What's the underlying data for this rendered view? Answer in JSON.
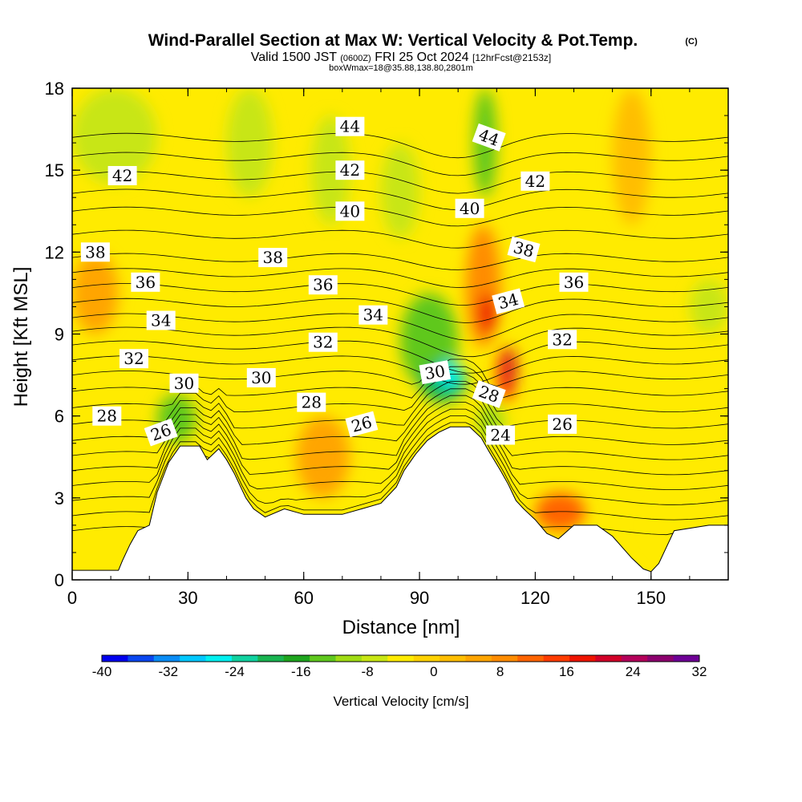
{
  "chart_data": {
    "type": "heatmap",
    "title": "Wind-Parallel Section at Max W: Vertical Velocity & Pot.Temp.",
    "title_mark": "(C)",
    "subtitle_main": "Valid 1500 JST",
    "subtitle_utc": "(0600Z)",
    "subtitle_date": "FRI 25 Oct 2024",
    "subtitle_fcst": "[12hrFcst@2153z]",
    "subtitle_box": "boxWmax=18@35.88,138.80,2801m",
    "xlabel": "Distance [nm]",
    "ylabel": "Height [Kft MSL]",
    "xlim": [
      0,
      170
    ],
    "ylim": [
      0,
      18
    ],
    "x_ticks": [
      "0",
      "30",
      "60",
      "90",
      "120",
      "150"
    ],
    "y_ticks": [
      "0",
      "3",
      "6",
      "9",
      "12",
      "15",
      "18"
    ],
    "colorbar": {
      "label": "Vertical Velocity [cm/s]",
      "tick_labels": [
        "-40",
        "-32",
        "-24",
        "-16",
        "-8",
        "0",
        "8",
        "16",
        "24",
        "32"
      ],
      "range": [
        -40,
        32
      ],
      "colors": [
        "#0000ee",
        "#0a46f0",
        "#0a8cf5",
        "#00c8ff",
        "#00f0f0",
        "#10d2a0",
        "#19b450",
        "#1ea51e",
        "#5fc81e",
        "#a0dc14",
        "#c8e614",
        "#ffeb00",
        "#ffd200",
        "#ffbe00",
        "#ffa500",
        "#ff8c00",
        "#ff6400",
        "#ff3c00",
        "#ee1400",
        "#d20028",
        "#b4005a",
        "#8c006e",
        "#6e0096"
      ]
    },
    "terrain": [
      [
        0,
        0.35
      ],
      [
        12,
        0.35
      ],
      [
        13,
        0.7
      ],
      [
        15,
        1.3
      ],
      [
        17,
        1.8
      ],
      [
        20,
        2.0
      ],
      [
        22,
        3.2
      ],
      [
        25,
        4.3
      ],
      [
        28,
        4.9
      ],
      [
        33,
        4.9
      ],
      [
        35,
        4.4
      ],
      [
        38,
        4.8
      ],
      [
        40,
        4.4
      ],
      [
        42,
        3.9
      ],
      [
        45,
        3.0
      ],
      [
        47,
        2.6
      ],
      [
        50,
        2.3
      ],
      [
        55,
        2.6
      ],
      [
        60,
        2.4
      ],
      [
        65,
        2.4
      ],
      [
        70,
        2.4
      ],
      [
        75,
        2.6
      ],
      [
        80,
        2.8
      ],
      [
        84,
        3.4
      ],
      [
        86,
        4.0
      ],
      [
        89,
        4.6
      ],
      [
        92,
        5.1
      ],
      [
        95,
        5.4
      ],
      [
        98,
        5.6
      ],
      [
        103,
        5.6
      ],
      [
        106,
        5.2
      ],
      [
        108,
        4.7
      ],
      [
        111,
        4.0
      ],
      [
        113,
        3.5
      ],
      [
        115,
        2.9
      ],
      [
        117,
        2.6
      ],
      [
        120,
        2.2
      ],
      [
        123,
        1.7
      ],
      [
        126,
        1.5
      ],
      [
        130,
        2.0
      ],
      [
        136,
        2.0
      ],
      [
        140,
        1.6
      ],
      [
        145,
        0.8
      ],
      [
        148,
        0.4
      ],
      [
        150,
        0.3
      ],
      [
        152,
        0.6
      ],
      [
        156,
        1.8
      ],
      [
        165,
        2.0
      ],
      [
        170,
        2.0
      ]
    ],
    "velocity_cells": [
      {
        "x": [
          0,
          22
        ],
        "y": [
          14.5,
          18
        ],
        "v": -6
      },
      {
        "x": [
          40,
          52
        ],
        "y": [
          14,
          18
        ],
        "v": -6
      },
      {
        "x": [
          62,
          72
        ],
        "y": [
          13,
          17
        ],
        "v": -7
      },
      {
        "x": [
          80,
          90
        ],
        "y": [
          12.5,
          16
        ],
        "v": -7
      },
      {
        "x": [
          104,
          110
        ],
        "y": [
          14,
          18
        ],
        "v": -14
      },
      {
        "x": [
          102,
          111
        ],
        "y": [
          8.5,
          13
        ],
        "v": 10
      },
      {
        "x": [
          105,
          110
        ],
        "y": [
          9,
          10.5
        ],
        "v": 18
      },
      {
        "x": [
          110,
          115
        ],
        "y": [
          6.5,
          8.5
        ],
        "v": 14
      },
      {
        "x": [
          112,
          115
        ],
        "y": [
          7,
          8.5
        ],
        "v": 20
      },
      {
        "x": [
          85,
          100
        ],
        "y": [
          7,
          10.5
        ],
        "v": -12
      },
      {
        "x": [
          90,
          102
        ],
        "y": [
          6.5,
          8
        ],
        "v": -20
      },
      {
        "x": [
          95,
          101
        ],
        "y": [
          7,
          8
        ],
        "v": -26
      },
      {
        "x": [
          105,
          112
        ],
        "y": [
          5,
          6.5
        ],
        "v": -9
      },
      {
        "x": [
          22,
          32
        ],
        "y": [
          5,
          6.8
        ],
        "v": -12
      },
      {
        "x": [
          0,
          12
        ],
        "y": [
          9,
          12
        ],
        "v": 4
      },
      {
        "x": [
          140,
          150
        ],
        "y": [
          13,
          18
        ],
        "v": 3
      },
      {
        "x": [
          120,
          133
        ],
        "y": [
          1.8,
          3.2
        ],
        "v": 12
      },
      {
        "x": [
          150,
          165
        ],
        "y": [
          1,
          3
        ],
        "v": -5
      },
      {
        "x": [
          58,
          72
        ],
        "y": [
          3,
          6
        ],
        "v": 5
      },
      {
        "x": [
          160,
          170
        ],
        "y": [
          9,
          11
        ],
        "v": -6
      }
    ],
    "theta_contours": [
      {
        "label": "44",
        "base": 16.2,
        "amp": -0.6,
        "peak": 100
      },
      {
        "label": "42",
        "base": 14.8,
        "amp": -0.5,
        "peak": 100
      },
      {
        "label": "40",
        "base": 13.5,
        "amp": -0.4,
        "peak": 100
      },
      {
        "label": "38",
        "base": 11.8,
        "amp": -0.3,
        "peak": 100
      },
      {
        "label": "36",
        "base": 10.7,
        "amp": -0.5,
        "peak": 102
      },
      {
        "label": "34",
        "base": 9.6,
        "amp": -0.7,
        "peak": 104
      },
      {
        "label": "32",
        "base": 8.6,
        "amp": -0.9,
        "peak": 104
      },
      {
        "label": "30",
        "base": 7.5,
        "amp": -0.6,
        "peak": 100
      },
      {
        "label": "28",
        "base": 6.3,
        "amp": -0.2,
        "peak": 100
      },
      {
        "label": "26",
        "base": 5.1,
        "amp": -0.1,
        "peak": 100
      },
      {
        "label": "24",
        "base": 4.0,
        "amp": 0.0,
        "peak": 100
      }
    ],
    "contour_labels": [
      {
        "text": "44",
        "x": 72,
        "y": 16.6
      },
      {
        "text": "44",
        "x": 108,
        "y": 16.2,
        "rot": 20
      },
      {
        "text": "42",
        "x": 13,
        "y": 14.8
      },
      {
        "text": "42",
        "x": 72,
        "y": 15.0
      },
      {
        "text": "42",
        "x": 120,
        "y": 14.6
      },
      {
        "text": "40",
        "x": 72,
        "y": 13.5
      },
      {
        "text": "40",
        "x": 103,
        "y": 13.6
      },
      {
        "text": "38",
        "x": 6,
        "y": 12.0
      },
      {
        "text": "38",
        "x": 52,
        "y": 11.8
      },
      {
        "text": "38",
        "x": 117,
        "y": 12.1,
        "rot": 15
      },
      {
        "text": "36",
        "x": 19,
        "y": 10.9
      },
      {
        "text": "36",
        "x": 65,
        "y": 10.8
      },
      {
        "text": "36",
        "x": 130,
        "y": 10.9
      },
      {
        "text": "34",
        "x": 23,
        "y": 9.5
      },
      {
        "text": "34",
        "x": 78,
        "y": 9.7
      },
      {
        "text": "34",
        "x": 113,
        "y": 10.2,
        "rot": -15
      },
      {
        "text": "32",
        "x": 16,
        "y": 8.1
      },
      {
        "text": "32",
        "x": 65,
        "y": 8.7
      },
      {
        "text": "32",
        "x": 127,
        "y": 8.8
      },
      {
        "text": "30",
        "x": 29,
        "y": 7.2
      },
      {
        "text": "30",
        "x": 49,
        "y": 7.4
      },
      {
        "text": "30",
        "x": 94,
        "y": 7.6,
        "rot": -10
      },
      {
        "text": "28",
        "x": 9,
        "y": 6.0
      },
      {
        "text": "28",
        "x": 62,
        "y": 6.5
      },
      {
        "text": "28",
        "x": 108,
        "y": 6.8,
        "rot": 20
      },
      {
        "text": "26",
        "x": 23,
        "y": 5.4,
        "rot": -20
      },
      {
        "text": "26",
        "x": 75,
        "y": 5.7,
        "rot": -15
      },
      {
        "text": "26",
        "x": 127,
        "y": 5.7
      },
      {
        "text": "24",
        "x": 111,
        "y": 5.3
      }
    ]
  }
}
